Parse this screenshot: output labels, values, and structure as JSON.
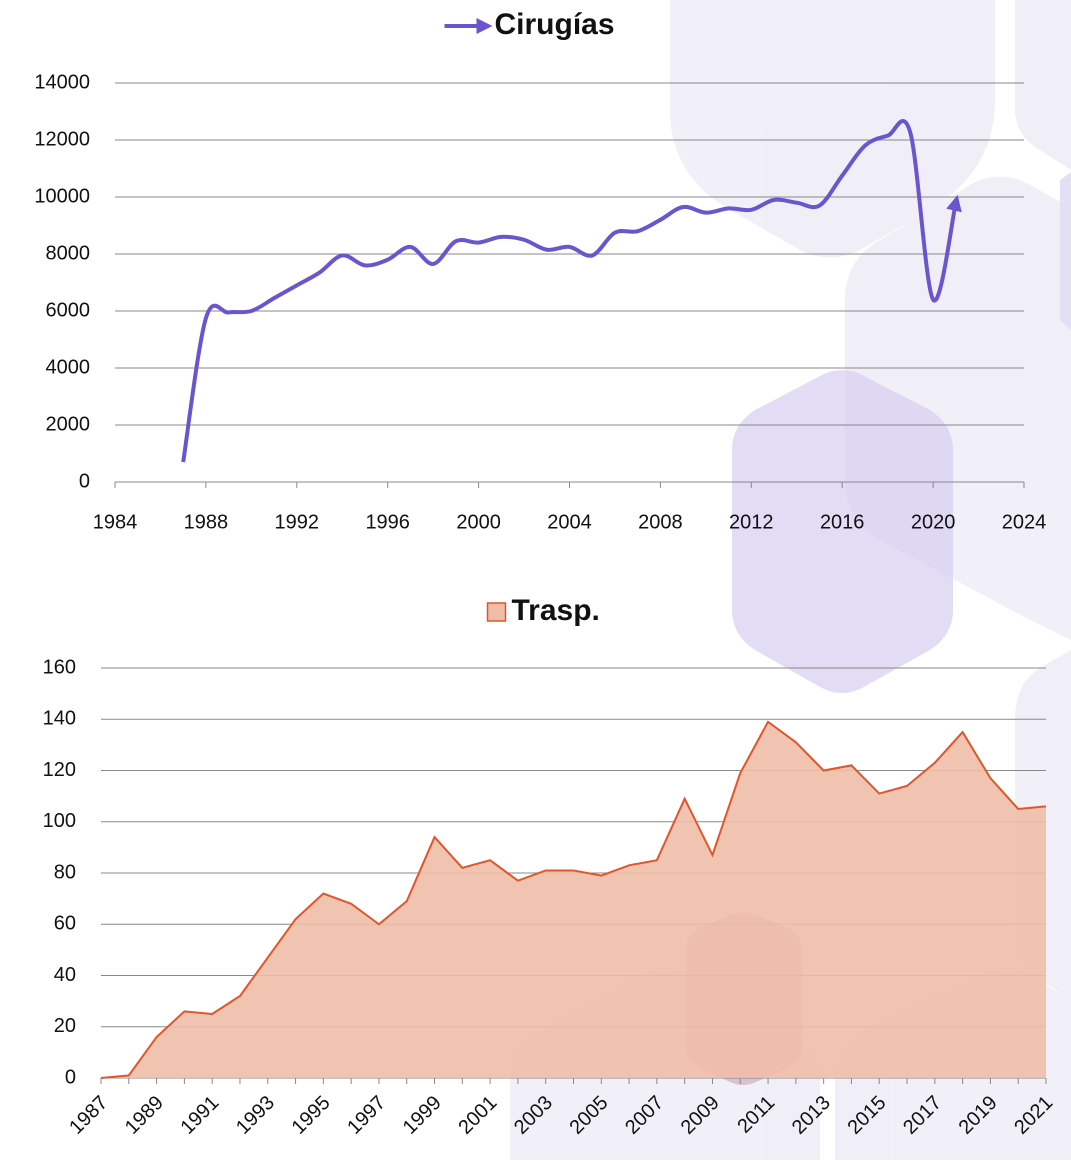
{
  "chart_data": [
    {
      "type": "line",
      "x": [
        1987,
        1988,
        1989,
        1990,
        1991,
        1992,
        1993,
        1994,
        1995,
        1996,
        1997,
        1998,
        1999,
        2000,
        2001,
        2002,
        2003,
        2004,
        2005,
        2006,
        2007,
        2008,
        2009,
        2010,
        2011,
        2012,
        2013,
        2014,
        2015,
        2016,
        2017,
        2018,
        2019,
        2020,
        2021
      ],
      "series": [
        {
          "name": "Cirugías",
          "color": "#6a55cf",
          "values": [
            700,
            5750,
            5950,
            6000,
            6450,
            6900,
            7350,
            7950,
            7600,
            7800,
            8250,
            7650,
            8450,
            8400,
            8600,
            8500,
            8150,
            8250,
            7950,
            8750,
            8800,
            9200,
            9650,
            9450,
            9600,
            9550,
            9900,
            9800,
            9700,
            10750,
            11800,
            12150,
            12250,
            6400,
            9800
          ]
        }
      ],
      "xlim": [
        1984,
        2024
      ],
      "xticks": [
        1984,
        1988,
        1992,
        1996,
        2000,
        2004,
        2008,
        2012,
        2016,
        2020,
        2024
      ],
      "ylim": [
        0,
        14000
      ],
      "yticks": [
        0,
        2000,
        4000,
        6000,
        8000,
        10000,
        12000,
        14000
      ],
      "grid": true
    },
    {
      "type": "area",
      "categories": [
        "1987",
        null,
        "1989",
        null,
        "1991",
        null,
        "1993",
        null,
        "1995",
        null,
        "1997",
        null,
        "1999",
        null,
        "2001",
        null,
        "2003",
        null,
        "2005",
        null,
        "2007",
        null,
        "2009",
        null,
        "2011",
        null,
        "2013",
        null,
        "2015",
        null,
        "2017",
        null,
        "2019",
        null,
        "2021"
      ],
      "series": [
        {
          "name": "Trasp.",
          "color": "#e0562b",
          "fill": "#f0bca8",
          "values": [
            0,
            1,
            16,
            26,
            25,
            32,
            47,
            62,
            72,
            68,
            60,
            69,
            94,
            82,
            85,
            77,
            81,
            81,
            79,
            83,
            85,
            109,
            87,
            119,
            139,
            131,
            120,
            122,
            111,
            114,
            123,
            135,
            117,
            105,
            106
          ]
        }
      ],
      "ylim": [
        0,
        160
      ],
      "yticks": [
        0,
        20,
        40,
        60,
        80,
        100,
        120,
        140,
        160
      ],
      "grid": true
    }
  ]
}
